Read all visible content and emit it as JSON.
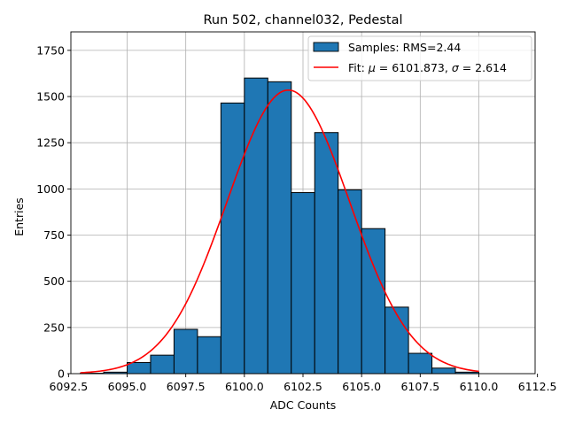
{
  "chart_data": {
    "type": "bar",
    "title": "Run 502, channel032, Pedestal",
    "xlabel": "ADC Counts",
    "ylabel": "Entries",
    "xlim": [
      6092.6,
      6112.4
    ],
    "ylim": [
      0,
      1850
    ],
    "xticks": [
      6092.5,
      6095.0,
      6097.5,
      6100.0,
      6102.5,
      6105.0,
      6107.5,
      6110.0,
      6112.5
    ],
    "xtick_labels": [
      "6092.5",
      "6095.0",
      "6097.5",
      "6100.0",
      "6102.5",
      "6105.0",
      "6107.5",
      "6110.0",
      "6112.5"
    ],
    "yticks": [
      0,
      250,
      500,
      750,
      1000,
      1250,
      1500,
      1750
    ],
    "ytick_labels": [
      "0",
      "250",
      "500",
      "750",
      "1000",
      "1250",
      "1500",
      "1750"
    ],
    "grid": true,
    "legend_position": "top-right",
    "bin_width": 1,
    "histogram": {
      "name": "Samples: RMS=2.44",
      "color": "#1f77b4",
      "edgecolor": "#000000",
      "bin_left_edges": [
        6093,
        6094,
        6095,
        6096,
        6097,
        6098,
        6099,
        6100,
        6101,
        6102,
        6103,
        6104,
        6105,
        6106,
        6107,
        6108,
        6109,
        6110,
        6111
      ],
      "counts": [
        2,
        8,
        60,
        100,
        240,
        200,
        1465,
        1600,
        1580,
        980,
        1305,
        995,
        785,
        360,
        110,
        30,
        8,
        0,
        0
      ]
    },
    "fit": {
      "name_prefix": "Fit: ",
      "mu_symbol": "μ",
      "mu_text": " = 6101.873, ",
      "sigma_symbol": "σ",
      "sigma_text": " = 2.614",
      "color": "#ff0000",
      "mu": 6101.873,
      "sigma": 2.614,
      "amplitude": 1535,
      "x_range": [
        6093,
        6110
      ]
    }
  }
}
